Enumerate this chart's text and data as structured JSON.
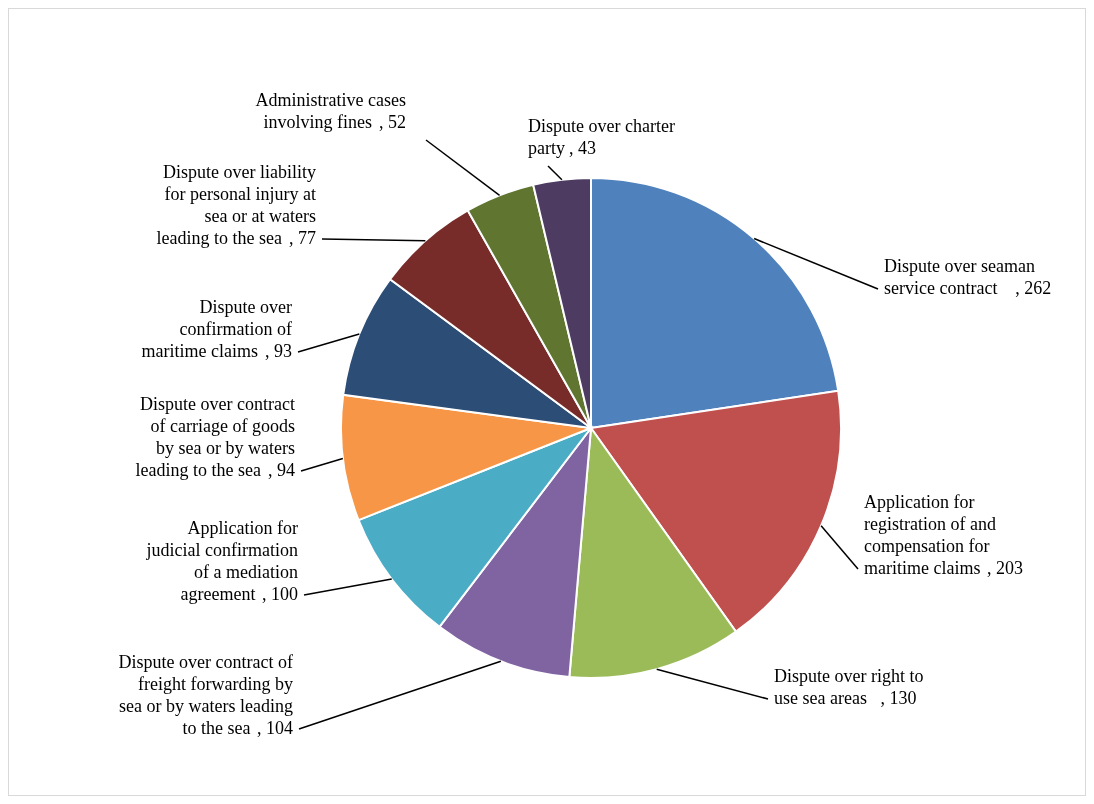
{
  "chart_data": {
    "type": "pie",
    "categories": [
      "Dispute over seaman service contract",
      "Application for registration of and compensation for maritime claims",
      "Dispute over right to use sea areas",
      "Dispute over contract of freight forwarding by sea or by waters leading to the sea",
      "Application for judicial confirmation of a mediation agreement",
      "Dispute over contract of carriage of goods by sea or by waters leading to the sea",
      "Dispute over confirmation of maritime claims",
      "Dispute over liability for personal injury at sea or at waters leading to the sea",
      "Administrative cases involving fines",
      "Dispute over charter party"
    ],
    "values": [
      262,
      203,
      130,
      104,
      100,
      94,
      93,
      77,
      52,
      43
    ],
    "value_labels": [
      ", 262",
      ", 203",
      ", 130",
      ", 104",
      ", 100",
      ", 94",
      ", 93",
      ", 77",
      ", 52",
      ", 43"
    ],
    "colors": [
      "#4f81bd",
      "#c0504d",
      "#9bbb59",
      "#8064a2",
      "#4bacc6",
      "#f79646",
      "#2c4d75",
      "#772c2a",
      "#5f7530",
      "#4d3b62"
    ]
  }
}
